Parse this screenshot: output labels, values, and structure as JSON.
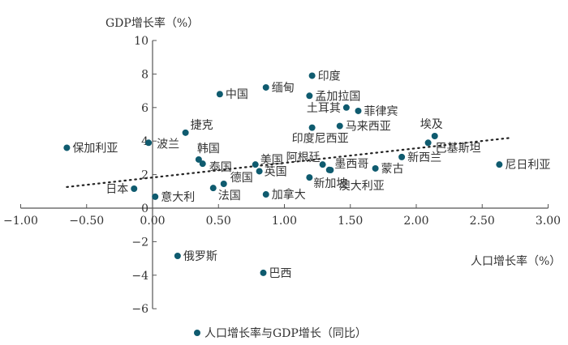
{
  "chart_data": {
    "type": "scatter",
    "title": "",
    "xlabel": "人口增长率（%）",
    "ylabel": "GDP增长率（%）",
    "xlim": [
      -1.0,
      3.0
    ],
    "ylim": [
      -6,
      10
    ],
    "xticks": [
      "−1.00",
      "−0.50",
      "0.00",
      "0.50",
      "1.00",
      "1.50",
      "2.00",
      "2.50",
      "3.00"
    ],
    "xtick_values": [
      -1.0,
      -0.5,
      0,
      0.5,
      1.0,
      1.5,
      2.0,
      2.5,
      3.0
    ],
    "yticks": [
      "10",
      "8",
      "6",
      "4",
      "2",
      "0",
      "−2",
      "−4",
      "−6"
    ],
    "ytick_values": [
      10,
      8,
      6,
      4,
      2,
      0,
      -2,
      -4,
      -6
    ],
    "grid": false,
    "legend": {
      "position": "bottom",
      "entries": [
        "人口增长率与GDP增长（同比）"
      ]
    },
    "point_color": "#0f5b6f",
    "trendline": {
      "style": "dotted",
      "x": [
        -0.65,
        2.7
      ],
      "y": [
        1.26,
        4.18
      ]
    },
    "points": [
      {
        "name": "保加利亚",
        "x": -0.65,
        "y": 3.6
      },
      {
        "name": "波兰",
        "x": -0.03,
        "y": 3.9
      },
      {
        "name": "捷克",
        "x": 0.25,
        "y": 4.5
      },
      {
        "name": "中国",
        "x": 0.51,
        "y": 6.8
      },
      {
        "name": "缅甸",
        "x": 0.86,
        "y": 7.2
      },
      {
        "name": "韩国",
        "x": 0.35,
        "y": 2.9
      },
      {
        "name": "泰国",
        "x": 0.38,
        "y": 2.65
      },
      {
        "name": "美国",
        "x": 0.78,
        "y": 2.6
      },
      {
        "name": "英国",
        "x": 0.81,
        "y": 2.2
      },
      {
        "name": "德国",
        "x": 0.54,
        "y": 1.45
      },
      {
        "name": "法国",
        "x": 0.46,
        "y": 1.2
      },
      {
        "name": "加拿大",
        "x": 0.86,
        "y": 0.82
      },
      {
        "name": "日本",
        "x": -0.14,
        "y": 1.16
      },
      {
        "name": "意大利",
        "x": 0.02,
        "y": 0.68
      },
      {
        "name": "印度",
        "x": 1.21,
        "y": 7.9
      },
      {
        "name": "孟加拉国",
        "x": 1.19,
        "y": 6.7
      },
      {
        "name": "土耳其",
        "x": 1.47,
        "y": 6.0
      },
      {
        "name": "菲律宾",
        "x": 1.56,
        "y": 5.8
      },
      {
        "name": "马来西亚",
        "x": 1.42,
        "y": 4.9
      },
      {
        "name": "印度尼西亚",
        "x": 1.21,
        "y": 4.8
      },
      {
        "name": "埃及",
        "x": 2.14,
        "y": 4.3
      },
      {
        "name": "巴基斯坦",
        "x": 2.09,
        "y": 3.9
      },
      {
        "name": "新西兰",
        "x": 1.89,
        "y": 3.05
      },
      {
        "name": "尼日利亚",
        "x": 2.63,
        "y": 2.6
      },
      {
        "name": "阿根廷",
        "x": 1.29,
        "y": 2.6
      },
      {
        "name": "墨西哥",
        "x": 1.35,
        "y": 2.27
      },
      {
        "name": "澳大利亚",
        "x": 1.34,
        "y": 2.28
      },
      {
        "name": "蒙古",
        "x": 1.69,
        "y": 2.37
      },
      {
        "name": "新加坡",
        "x": 1.19,
        "y": 1.83
      },
      {
        "name": "俄罗斯",
        "x": 0.19,
        "y": -2.85
      },
      {
        "name": "巴西",
        "x": 0.84,
        "y": -3.86
      }
    ]
  }
}
